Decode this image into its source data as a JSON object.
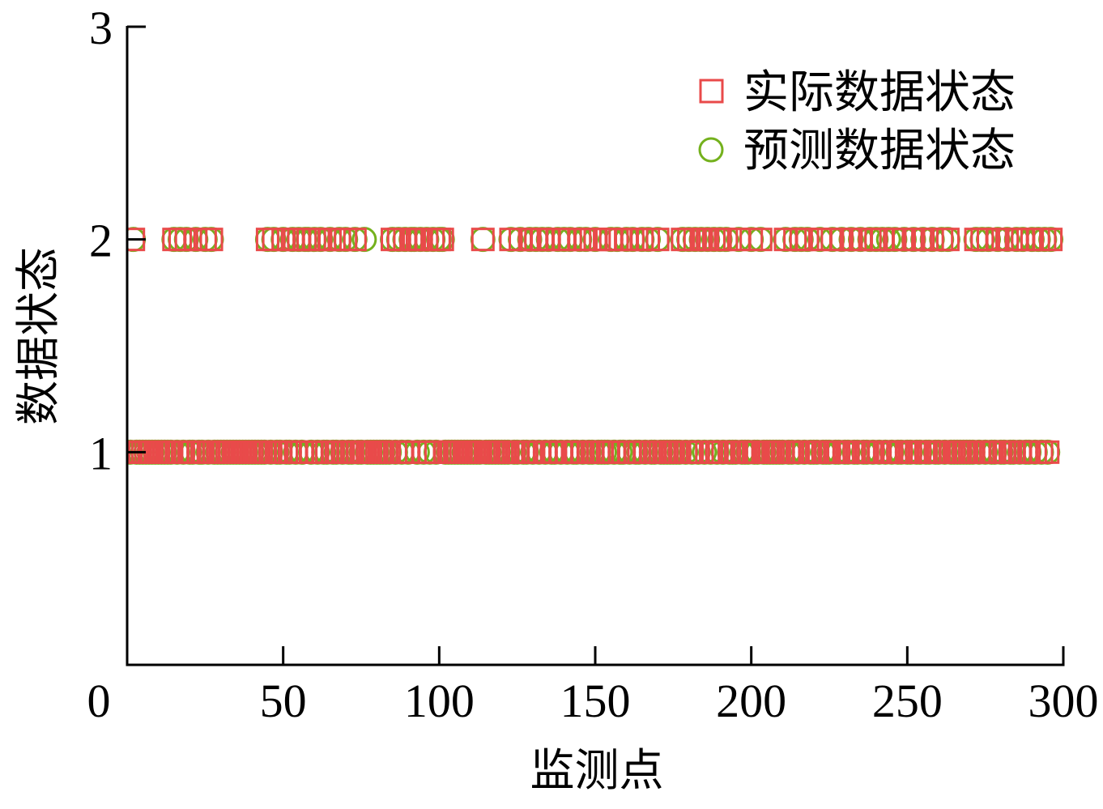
{
  "chart_data": {
    "type": "scatter",
    "xlabel": "监测点",
    "ylabel": "数据状态",
    "xlim": [
      0,
      300
    ],
    "ylim": [
      0,
      3
    ],
    "xticks": [
      0,
      50,
      100,
      150,
      200,
      250,
      300
    ],
    "yticks": [
      1,
      2,
      3
    ],
    "grid": false,
    "legend": "top-right",
    "x": [
      1,
      2,
      3,
      4,
      5,
      6,
      7,
      8,
      9,
      10,
      11,
      12,
      13,
      14,
      15,
      16,
      17,
      18,
      19,
      20,
      21,
      22,
      23,
      24,
      25,
      26,
      27,
      28,
      29,
      30,
      31,
      32,
      33,
      34,
      35,
      36,
      37,
      38,
      39,
      40,
      41,
      42,
      43,
      44,
      45,
      46,
      47,
      48,
      49,
      50,
      51,
      52,
      53,
      54,
      55,
      56,
      57,
      58,
      59,
      60,
      61,
      62,
      63,
      64,
      65,
      66,
      67,
      68,
      69,
      70,
      71,
      72,
      73,
      74,
      75,
      76,
      77,
      78,
      79,
      80,
      81,
      82,
      83,
      84,
      85,
      86,
      87,
      88,
      89,
      90,
      91,
      92,
      93,
      94,
      95,
      96,
      97,
      98,
      99,
      100,
      101,
      102,
      103,
      104,
      105,
      106,
      107,
      108,
      109,
      110,
      111,
      112,
      113,
      114,
      115,
      116,
      117,
      118,
      119,
      120,
      121,
      122,
      123,
      124,
      125,
      126,
      127,
      128,
      129,
      130,
      131,
      132,
      133,
      134,
      135,
      136,
      137,
      138,
      139,
      140,
      141,
      142,
      143,
      144,
      145,
      146,
      147,
      148,
      149,
      150,
      151,
      152,
      153,
      154,
      155,
      156,
      157,
      158,
      159,
      160,
      161,
      162,
      163,
      164,
      165,
      166,
      167,
      168,
      169,
      170,
      171,
      172,
      173,
      174,
      175,
      176,
      177,
      178,
      179,
      180,
      181,
      182,
      183,
      184,
      185,
      186,
      187,
      188,
      189,
      190,
      191,
      192,
      193,
      194,
      195,
      196,
      197,
      198,
      199,
      200,
      201,
      202,
      203,
      204,
      205,
      206,
      207,
      208,
      209,
      210,
      211,
      212,
      213,
      214,
      215,
      216,
      217,
      218,
      219,
      220,
      221,
      222,
      223,
      224,
      225,
      226,
      227,
      228,
      229,
      230,
      231,
      232,
      233,
      234,
      235,
      236,
      237,
      238,
      239,
      240,
      241,
      242,
      243,
      244,
      245,
      246,
      247,
      248,
      249,
      250,
      251,
      252,
      253,
      254,
      255,
      256,
      257,
      258,
      259,
      260,
      261,
      262,
      263,
      264,
      265,
      266,
      267,
      268,
      269,
      270,
      271,
      272,
      273,
      274,
      275,
      276,
      277,
      278,
      279,
      280,
      281,
      282,
      283,
      284,
      285,
      286,
      287,
      288,
      289,
      290,
      291,
      292,
      293,
      294,
      295,
      296
    ],
    "series": [
      {
        "name": "实际数据状态",
        "marker": "square",
        "color": "#e94a4a",
        "values": [
          1,
          2,
          1,
          1,
          1,
          1,
          1,
          1,
          1,
          1,
          1,
          1,
          1,
          1,
          2,
          1,
          2,
          1,
          2,
          1,
          1,
          2,
          1,
          1,
          2,
          1,
          2,
          1,
          1,
          1,
          1,
          1,
          1,
          1,
          1,
          1,
          1,
          1,
          1,
          1,
          1,
          1,
          1,
          1,
          2,
          1,
          2,
          1,
          1,
          2,
          1,
          1,
          2,
          1,
          2,
          1,
          2,
          2,
          1,
          2,
          1,
          2,
          1,
          1,
          2,
          1,
          1,
          2,
          1,
          2,
          1,
          1,
          2,
          1,
          1,
          1,
          1,
          1,
          1,
          1,
          1,
          1,
          1,
          1,
          2,
          1,
          2,
          1,
          2,
          1,
          2,
          2,
          2,
          2,
          1,
          2,
          1,
          2,
          1,
          2,
          2,
          1,
          1,
          1,
          1,
          1,
          1,
          1,
          1,
          1,
          1,
          1,
          1,
          2,
          1,
          1,
          1,
          1,
          1,
          1,
          1,
          1,
          2,
          1,
          1,
          2,
          1,
          1,
          2,
          1,
          2,
          1,
          2,
          1,
          2,
          1,
          1,
          2,
          1,
          2,
          1,
          2,
          1,
          1,
          2,
          1,
          2,
          1,
          1,
          2,
          1,
          1,
          2,
          1,
          2,
          1,
          2,
          2,
          1,
          2,
          1,
          2,
          1,
          1,
          2,
          1,
          2,
          1,
          1,
          2,
          1,
          1,
          1,
          1,
          1,
          1,
          1,
          2,
          1,
          2,
          1,
          2,
          1,
          2,
          2,
          2,
          1,
          2,
          1,
          2,
          1,
          2,
          1,
          1,
          1,
          2,
          1,
          1,
          1,
          2,
          1,
          1,
          2,
          1,
          1,
          1,
          1,
          1,
          1,
          1,
          2,
          1,
          1,
          2,
          1,
          2,
          1,
          2,
          1,
          1,
          1,
          2,
          1,
          1,
          1,
          2,
          1,
          1,
          2,
          1,
          1,
          2,
          1,
          1,
          2,
          1,
          1,
          2,
          1,
          2,
          1,
          2,
          1,
          1,
          1,
          2,
          1,
          1,
          2,
          1,
          1,
          2,
          1,
          1,
          2,
          1,
          1,
          2,
          1,
          1,
          2,
          1,
          2,
          1,
          1,
          1,
          1,
          1,
          1,
          1,
          1,
          2,
          1,
          2,
          1,
          2,
          1,
          1,
          2,
          1,
          1,
          2,
          1,
          1,
          2,
          1,
          2,
          1,
          1,
          2,
          1,
          2,
          1,
          2,
          1,
          2
        ]
      },
      {
        "name": "预测数据状态",
        "marker": "circle",
        "color": "#74b11d",
        "values": [
          1,
          2,
          1,
          1,
          1,
          1,
          1,
          1,
          1,
          1,
          1,
          1,
          1,
          1,
          2,
          1,
          2,
          1,
          2,
          1,
          1,
          2,
          1,
          1,
          2,
          1,
          2,
          1,
          1,
          1,
          1,
          1,
          1,
          1,
          1,
          1,
          1,
          1,
          1,
          1,
          1,
          1,
          1,
          1,
          2,
          1,
          2,
          1,
          1,
          2,
          1,
          1,
          2,
          1,
          2,
          1,
          2,
          2,
          1,
          2,
          1,
          2,
          1,
          1,
          2,
          1,
          1,
          2,
          1,
          2,
          1,
          1,
          2,
          1,
          1,
          2,
          1,
          1,
          1,
          1,
          1,
          1,
          1,
          1,
          2,
          1,
          2,
          1,
          2,
          1,
          2,
          2,
          1,
          2,
          1,
          2,
          1,
          2,
          1,
          2,
          2,
          1,
          1,
          1,
          1,
          1,
          1,
          1,
          1,
          1,
          1,
          1,
          1,
          2,
          1,
          1,
          1,
          1,
          1,
          1,
          1,
          1,
          2,
          1,
          1,
          2,
          1,
          1,
          2,
          1,
          2,
          1,
          2,
          1,
          2,
          1,
          1,
          2,
          1,
          2,
          1,
          2,
          1,
          1,
          2,
          1,
          2,
          1,
          1,
          2,
          1,
          1,
          1,
          1,
          2,
          1,
          2,
          1,
          1,
          2,
          1,
          2,
          1,
          1,
          2,
          1,
          2,
          1,
          1,
          2,
          1,
          1,
          1,
          1,
          1,
          1,
          1,
          2,
          1,
          2,
          1,
          2,
          1,
          2,
          1,
          2,
          1,
          2,
          1,
          2,
          1,
          2,
          1,
          1,
          1,
          2,
          1,
          1,
          1,
          2,
          1,
          1,
          2,
          1,
          1,
          1,
          1,
          1,
          1,
          1,
          2,
          1,
          1,
          2,
          1,
          2,
          1,
          2,
          1,
          1,
          1,
          2,
          1,
          1,
          1,
          2,
          1,
          1,
          2,
          1,
          1,
          2,
          1,
          1,
          2,
          1,
          1,
          2,
          1,
          2,
          1,
          2,
          1,
          2,
          1,
          2,
          1,
          1,
          2,
          1,
          1,
          2,
          1,
          1,
          2,
          1,
          1,
          2,
          1,
          1,
          2,
          1,
          2,
          1,
          1,
          1,
          1,
          1,
          1,
          1,
          1,
          2,
          1,
          2,
          1,
          2,
          1,
          1,
          2,
          1,
          1,
          2,
          1,
          1,
          2,
          1,
          2,
          1,
          1,
          2,
          1,
          2,
          1,
          2,
          1,
          2
        ]
      }
    ]
  }
}
